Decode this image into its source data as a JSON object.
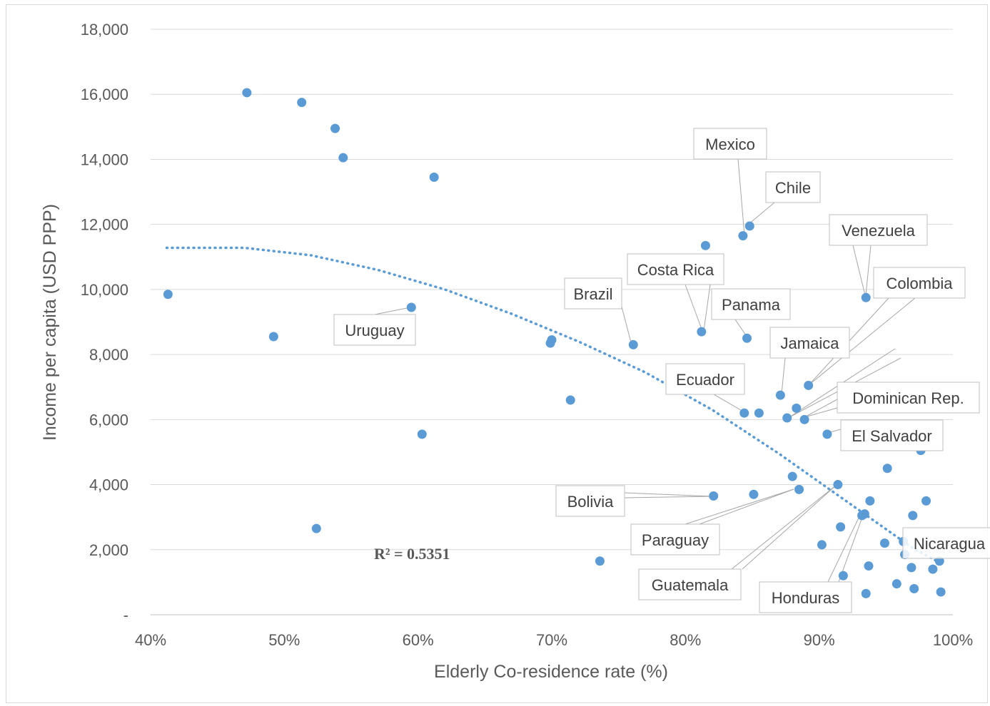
{
  "chart_data": {
    "type": "scatter",
    "xlabel": "Elderly Co-residence rate (%)",
    "ylabel": "Income per capita (USD PPP)",
    "xlim": [
      40,
      100
    ],
    "ylim": [
      0,
      18000
    ],
    "x_ticks": [
      "40%",
      "50%",
      "60%",
      "70%",
      "80%",
      "90%",
      "100%"
    ],
    "y_ticks": [
      "-",
      "2,000",
      "4,000",
      "6,000",
      "8,000",
      "10,000",
      "12,000",
      "14,000",
      "16,000",
      "18,000"
    ],
    "grid": true,
    "marker_color": "#5b9bd5",
    "trendline": {
      "style": "dotted",
      "color": "#5b9bd5",
      "r_squared_label": "R² = 0.5351",
      "points": [
        [
          41.2,
          11280
        ],
        [
          47,
          11280
        ],
        [
          52,
          11050
        ],
        [
          57,
          10600
        ],
        [
          62,
          10000
        ],
        [
          67,
          9250
        ],
        [
          72,
          8400
        ],
        [
          77,
          7450
        ],
        [
          82,
          6300
        ],
        [
          87,
          4950
        ],
        [
          92,
          3500
        ],
        [
          97,
          2050
        ],
        [
          98.8,
          1650
        ]
      ]
    },
    "points": [
      {
        "x": 41.3,
        "y": 9850,
        "label": ""
      },
      {
        "x": 47.2,
        "y": 16050,
        "label": ""
      },
      {
        "x": 49.2,
        "y": 8550,
        "label": ""
      },
      {
        "x": 51.3,
        "y": 15750,
        "label": ""
      },
      {
        "x": 52.4,
        "y": 2650,
        "label": ""
      },
      {
        "x": 53.8,
        "y": 14950,
        "label": ""
      },
      {
        "x": 54.4,
        "y": 14050,
        "label": ""
      },
      {
        "x": 59.5,
        "y": 9450,
        "label": "Uruguay"
      },
      {
        "x": 60.3,
        "y": 5550,
        "label": ""
      },
      {
        "x": 61.2,
        "y": 13450,
        "label": ""
      },
      {
        "x": 69.9,
        "y": 8350,
        "label": ""
      },
      {
        "x": 70.0,
        "y": 8450,
        "label": ""
      },
      {
        "x": 71.4,
        "y": 6600,
        "label": ""
      },
      {
        "x": 73.6,
        "y": 1650,
        "label": ""
      },
      {
        "x": 76.1,
        "y": 8300,
        "label": "Brazil"
      },
      {
        "x": 81.2,
        "y": 8700,
        "label": "Costa Rica"
      },
      {
        "x": 81.5,
        "y": 11350,
        "label": ""
      },
      {
        "x": 82.1,
        "y": 3650,
        "label": "Bolivia"
      },
      {
        "x": 84.3,
        "y": 11650,
        "label": "Mexico"
      },
      {
        "x": 84.4,
        "y": 6200,
        "label": "Ecuador"
      },
      {
        "x": 84.6,
        "y": 8500,
        "label": "Panama"
      },
      {
        "x": 84.8,
        "y": 11950,
        "label": "Chile"
      },
      {
        "x": 85.1,
        "y": 3700,
        "label": ""
      },
      {
        "x": 85.5,
        "y": 6200,
        "label": ""
      },
      {
        "x": 87.1,
        "y": 6750,
        "label": "Jamaica"
      },
      {
        "x": 87.6,
        "y": 6050,
        "label": ""
      },
      {
        "x": 88.0,
        "y": 4250,
        "label": ""
      },
      {
        "x": 88.3,
        "y": 6350,
        "label": ""
      },
      {
        "x": 88.5,
        "y": 3850,
        "label": "Paraguay"
      },
      {
        "x": 88.9,
        "y": 6000,
        "label": "Dominican Rep."
      },
      {
        "x": 89.2,
        "y": 7050,
        "label": "Colombia"
      },
      {
        "x": 90.2,
        "y": 2150,
        "label": ""
      },
      {
        "x": 90.6,
        "y": 5550,
        "label": "El Salvador"
      },
      {
        "x": 91.4,
        "y": 4000,
        "label": "Guatemala"
      },
      {
        "x": 91.6,
        "y": 2700,
        "label": ""
      },
      {
        "x": 91.8,
        "y": 1200,
        "label": ""
      },
      {
        "x": 93.2,
        "y": 3050,
        "label": ""
      },
      {
        "x": 93.4,
        "y": 3100,
        "label": "Honduras"
      },
      {
        "x": 93.5,
        "y": 650,
        "label": ""
      },
      {
        "x": 93.5,
        "y": 9750,
        "label": "Venezuela"
      },
      {
        "x": 93.7,
        "y": 1500,
        "label": ""
      },
      {
        "x": 93.8,
        "y": 3500,
        "label": ""
      },
      {
        "x": 94.9,
        "y": 2200,
        "label": ""
      },
      {
        "x": 95.1,
        "y": 4500,
        "label": ""
      },
      {
        "x": 95.8,
        "y": 950,
        "label": ""
      },
      {
        "x": 96.4,
        "y": 1850,
        "label": ""
      },
      {
        "x": 96.9,
        "y": 1450,
        "label": ""
      },
      {
        "x": 97.0,
        "y": 3050,
        "label": ""
      },
      {
        "x": 97.1,
        "y": 800,
        "label": ""
      },
      {
        "x": 97.6,
        "y": 5050,
        "label": ""
      },
      {
        "x": 98.0,
        "y": 3500,
        "label": ""
      },
      {
        "x": 98.5,
        "y": 1400,
        "label": ""
      },
      {
        "x": 99.0,
        "y": 1650,
        "label": ""
      },
      {
        "x": 99.1,
        "y": 700,
        "label": ""
      },
      {
        "x": 96.3,
        "y": 2250,
        "label": "Nicaragua"
      }
    ]
  }
}
